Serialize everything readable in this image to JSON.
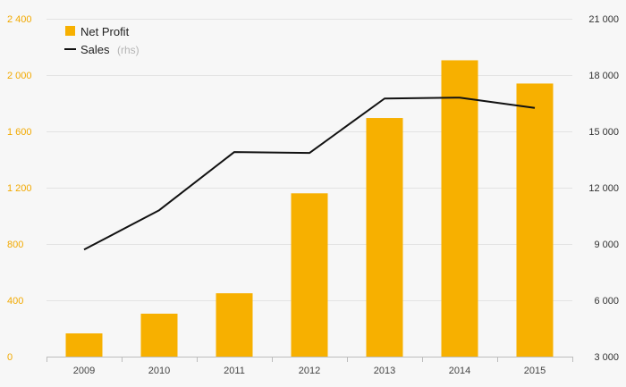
{
  "chart_data": {
    "type": "bar+line",
    "categories": [
      "2009",
      "2010",
      "2011",
      "2012",
      "2013",
      "2014",
      "2015"
    ],
    "series": [
      {
        "name": "Net Profit",
        "type": "bar",
        "axis": "left",
        "color": "#f7b000",
        "values": [
          165,
          305,
          450,
          1160,
          1695,
          2105,
          1940
        ]
      },
      {
        "name": "Sales",
        "name_suffix": "(rhs)",
        "type": "line",
        "axis": "right",
        "color": "#111111",
        "values": [
          8700,
          10800,
          13900,
          13850,
          16750,
          16800,
          16250
        ]
      }
    ],
    "y_left": {
      "ylim": [
        0,
        2400
      ],
      "ticks": [
        0,
        400,
        800,
        1200,
        1600,
        2000,
        2400
      ],
      "tick_labels": [
        "0",
        "400",
        "800",
        "1 200",
        "1 600",
        "2 000",
        "2 400"
      ],
      "tick_color": "#f2a900"
    },
    "y_right": {
      "ylim": [
        3000,
        21000
      ],
      "ticks": [
        3000,
        6000,
        9000,
        12000,
        15000,
        18000,
        21000
      ],
      "tick_labels": [
        "3 000",
        "6 000",
        "9 000",
        "12 000",
        "15 000",
        "18 000",
        "21 000"
      ]
    },
    "grid": true,
    "legend_position": "top-left"
  },
  "legend": {
    "bar_label": "Net Profit",
    "line_label": "Sales",
    "line_suffix": "(rhs)"
  }
}
